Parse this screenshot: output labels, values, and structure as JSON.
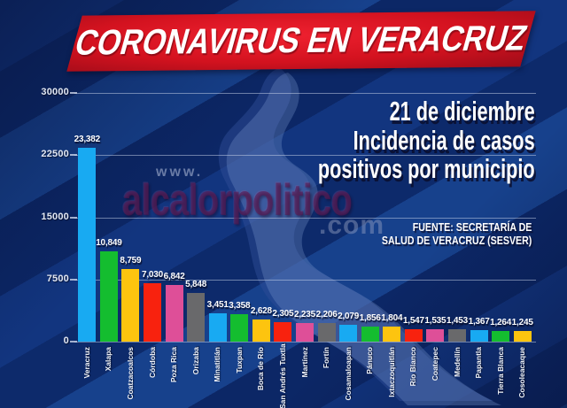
{
  "banner": {
    "title": "CORONAVIRUS EN VERACRUZ"
  },
  "heading": {
    "lines": [
      "21 de diciembre",
      "Incidencia de casos",
      "positivos por municipio"
    ]
  },
  "source": {
    "lines": [
      "FUENTE: SECRETARÍA DE",
      "SALUD DE VERACRUZ (SESVER)"
    ]
  },
  "watermark": {
    "prefix": "www.",
    "name": "alcalorpolitico",
    "suffix": ".com"
  },
  "colors": {
    "bar_cycle": [
      "#18aaf2",
      "#14bd2f",
      "#fdc40f",
      "#f8220e",
      "#de4f98",
      "#69696b"
    ],
    "banner_red": "#d3121f",
    "background_navy": "#0d2b6d",
    "grid_line": "rgba(205,215,235,0.5)"
  },
  "chart_data": {
    "type": "bar",
    "title": "Incidencia de casos positivos por municipio — 21 de diciembre",
    "categories": [
      "Veracruz",
      "Xalapa",
      "Coatzacoalcos",
      "Córdoba",
      "Poza Rica",
      "Orizaba",
      "Minatitlán",
      "Tuxpan",
      "Boca de Río",
      "San Andrés Tuxtla",
      "Martínez",
      "Fortín",
      "Cosamaloapan",
      "Pánuco",
      "Ixtaczoquitlán",
      "Río Blanco",
      "Coatepec",
      "Medellín",
      "Papantla",
      "Tierra Blanca",
      "Cosoleacaque"
    ],
    "values": [
      23382,
      10849,
      8759,
      7030,
      6842,
      5848,
      3451,
      3358,
      2628,
      2305,
      2235,
      2206,
      2079,
      1856,
      1804,
      1547,
      1535,
      1453,
      1367,
      1264,
      1245
    ],
    "value_labels": [
      "23,382",
      "10,849",
      "8,759",
      "7,030",
      "6,842",
      "5,848",
      "3,451",
      "3,358",
      "2,628",
      "2,305",
      "2,235",
      "2,206",
      "2,079",
      "1,856",
      "1,804",
      "1,547",
      "1,535",
      "1,453",
      "1,367",
      "1,264",
      "1,245"
    ],
    "yticks": [
      {
        "label": "30000",
        "value": 30000
      },
      {
        "label": "22500",
        "value": 22500
      },
      {
        "label": "15000",
        "value": 15000
      },
      {
        "label": "7500",
        "value": 7500
      },
      {
        "label": "0",
        "value": 0
      }
    ],
    "ylim": [
      0,
      30000
    ],
    "grid": true,
    "legend": "none",
    "bar_color_pattern": "repeating 6-color cycle (blue, green, yellow, red, pink, gray)"
  }
}
